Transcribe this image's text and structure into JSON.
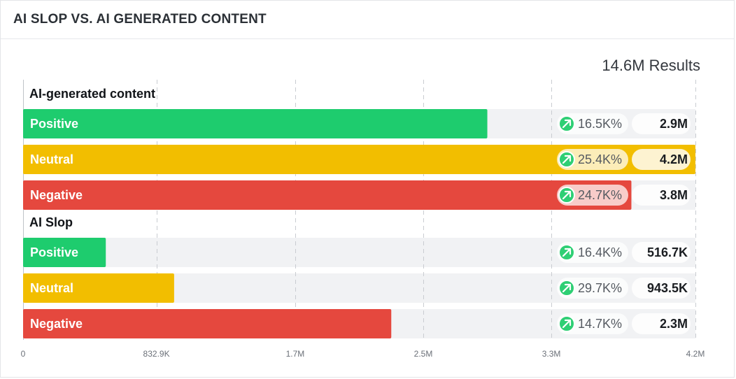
{
  "header": {
    "title": "AI SLOP VS. AI GENERATED CONTENT"
  },
  "results_label": "14.6M Results",
  "colors": {
    "positive": "#1ecc6e",
    "neutral": "#f2be00",
    "negative": "#e5483e",
    "track": "#f1f2f4",
    "trend_icon": "#2ecf74"
  },
  "chart_data": {
    "type": "bar",
    "orientation": "horizontal",
    "xlim": [
      0,
      4200000
    ],
    "x_ticks": [
      "0",
      "832.9K",
      "1.7M",
      "2.5M",
      "3.3M",
      "4.2M"
    ],
    "x_tick_values": [
      0,
      832900,
      1700000,
      2500000,
      3300000,
      4200000
    ],
    "grid": true,
    "groups": [
      {
        "name": "AI-generated content",
        "bars": [
          {
            "label": "Positive",
            "sentiment": "positive",
            "value": 2900000,
            "value_label": "2.9M",
            "change": "16.5K%",
            "trend": "up"
          },
          {
            "label": "Neutral",
            "sentiment": "neutral",
            "value": 4200000,
            "value_label": "4.2M",
            "change": "25.4K%",
            "trend": "up"
          },
          {
            "label": "Negative",
            "sentiment": "negative",
            "value": 3800000,
            "value_label": "3.8M",
            "change": "24.7K%",
            "trend": "up"
          }
        ]
      },
      {
        "name": "AI Slop",
        "bars": [
          {
            "label": "Positive",
            "sentiment": "positive",
            "value": 516700,
            "value_label": "516.7K",
            "change": "16.4K%",
            "trend": "up"
          },
          {
            "label": "Neutral",
            "sentiment": "neutral",
            "value": 943500,
            "value_label": "943.5K",
            "change": "29.7K%",
            "trend": "up"
          },
          {
            "label": "Negative",
            "sentiment": "negative",
            "value": 2300000,
            "value_label": "2.3M",
            "change": "14.7K%",
            "trend": "up"
          }
        ]
      }
    ]
  }
}
